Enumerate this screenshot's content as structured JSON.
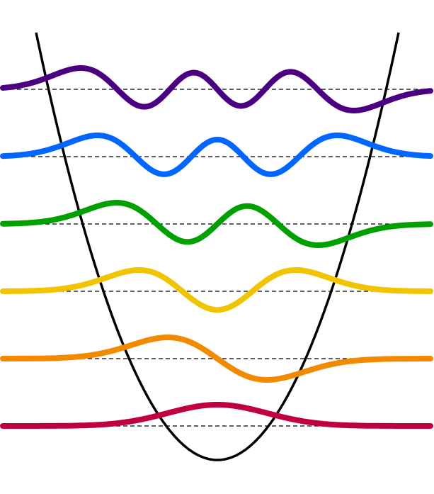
{
  "diagram": {
    "type": "quantum-harmonic-oscillator-wavefunctions",
    "potential": {
      "shape": "parabola",
      "color": "#000000"
    },
    "baseline_style": "dashed",
    "baseline_color": "#000000",
    "levels": [
      {
        "n": 0,
        "color": "#c0003c"
      },
      {
        "n": 1,
        "color": "#f28a00"
      },
      {
        "n": 2,
        "color": "#f0c400"
      },
      {
        "n": 3,
        "color": "#00a000"
      },
      {
        "n": 4,
        "color": "#0066ff"
      },
      {
        "n": 5,
        "color": "#4b0082"
      }
    ]
  }
}
